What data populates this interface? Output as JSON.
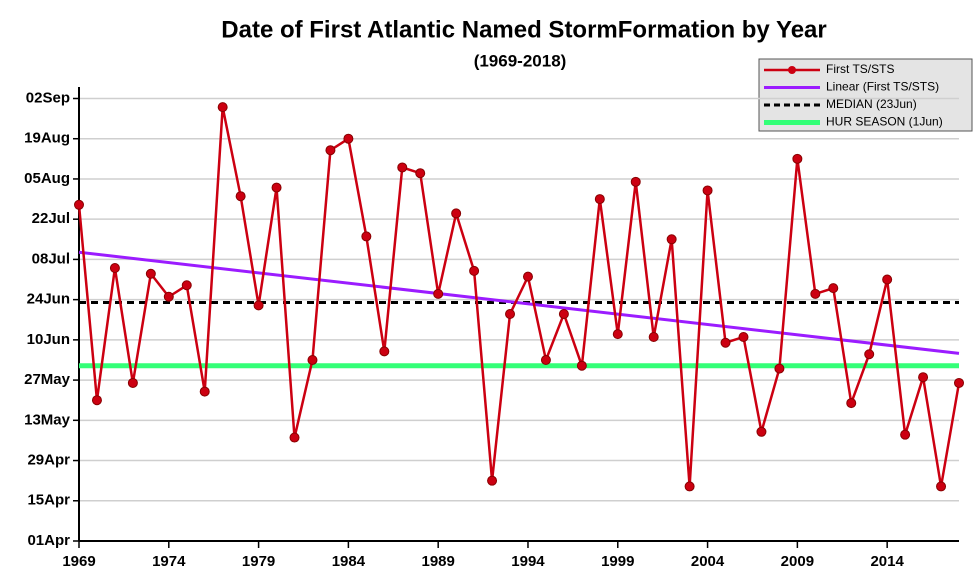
{
  "chart_data": {
    "type": "line",
    "title": "Date of First Atlantic Named StormFormation by Year",
    "subtitle": "(1969-2018)",
    "x": [
      1969,
      1970,
      1971,
      1972,
      1973,
      1974,
      1975,
      1976,
      1977,
      1978,
      1979,
      1980,
      1981,
      1982,
      1983,
      1984,
      1985,
      1986,
      1987,
      1988,
      1989,
      1990,
      1991,
      1992,
      1993,
      1994,
      1995,
      1996,
      1997,
      1998,
      1999,
      2000,
      2001,
      2002,
      2003,
      2004,
      2005,
      2006,
      2007,
      2008,
      2009,
      2010,
      2011,
      2012,
      2013,
      2014,
      2015,
      2016,
      2017,
      2018
    ],
    "series": [
      {
        "name": "First TS/STS",
        "color": "#cc0011",
        "values": [
          208,
          140,
          186,
          146,
          184,
          176,
          180,
          143,
          242,
          211,
          173,
          214,
          127,
          154,
          227,
          231,
          197,
          157,
          221,
          219,
          177,
          205,
          185,
          112,
          170,
          183,
          154,
          170,
          152,
          210,
          163,
          216,
          162,
          196,
          110,
          213,
          160,
          162,
          129,
          151,
          224,
          177,
          179,
          139,
          156,
          182,
          128,
          148,
          110,
          146
        ]
      }
    ],
    "trend": {
      "name": "Linear (First TS/STS)",
      "color": "#9b1cff",
      "x": [
        1969,
        2018
      ],
      "values": [
        191.5,
        156.3
      ]
    },
    "reference_lines": [
      {
        "name": "MEDIAN (23Jun)",
        "color": "#000000",
        "value": 174,
        "dashed": true
      },
      {
        "name": "HUR SEASON (1Jun)",
        "color": "#33ff77",
        "value": 152,
        "dashed": false
      }
    ],
    "xlim": [
      1969,
      2018
    ],
    "xticks": [
      1969,
      1974,
      1979,
      1984,
      1989,
      1994,
      1999,
      2004,
      2009,
      2014
    ],
    "ylim": [
      91,
      249
    ],
    "yticks": [
      {
        "value": 91,
        "label": "01Apr"
      },
      {
        "value": 105,
        "label": "15Apr"
      },
      {
        "value": 119,
        "label": "29Apr"
      },
      {
        "value": 133,
        "label": "13May"
      },
      {
        "value": 147,
        "label": "27May"
      },
      {
        "value": 161,
        "label": "10Jun"
      },
      {
        "value": 175,
        "label": "24Jun"
      },
      {
        "value": 189,
        "label": "08Jul"
      },
      {
        "value": 203,
        "label": "22Jul"
      },
      {
        "value": 217,
        "label": "05Aug"
      },
      {
        "value": 231,
        "label": "19Aug"
      },
      {
        "value": 245,
        "label": "02Sep"
      }
    ],
    "grid": true,
    "legend": "top-right"
  }
}
